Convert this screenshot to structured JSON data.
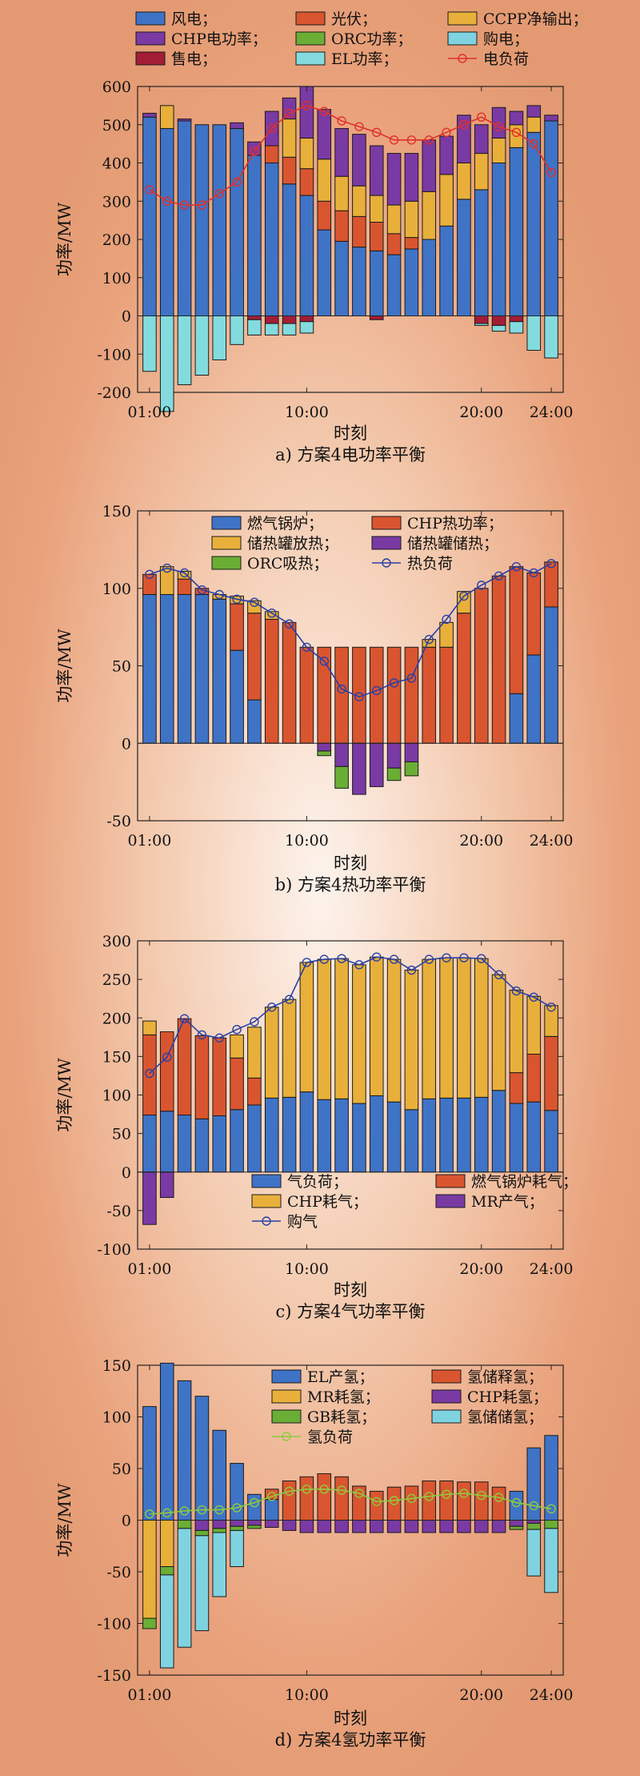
{
  "chart_data": [
    {
      "type": "bar",
      "caption": "a) 方案4电功率平衡",
      "xlabel": "时刻",
      "ylabel": "功率/MW",
      "ylim": [
        -200,
        600
      ],
      "yticks": [
        -200,
        -100,
        0,
        100,
        200,
        300,
        400,
        500,
        600
      ],
      "xticks": [
        "01:00",
        "10:00",
        "20:00",
        "24:00"
      ],
      "xtick_hours": [
        1,
        10,
        20,
        24
      ],
      "hours": [
        1,
        2,
        3,
        4,
        5,
        6,
        7,
        8,
        9,
        10,
        11,
        12,
        13,
        14,
        15,
        16,
        17,
        18,
        19,
        20,
        21,
        22,
        23,
        24
      ],
      "legend": {
        "columns": 3
      },
      "series": [
        {
          "name": "风电；",
          "color": "#3f73c6",
          "values": [
            520,
            490,
            510,
            500,
            500,
            490,
            420,
            400,
            345,
            315,
            225,
            195,
            180,
            170,
            160,
            175,
            200,
            235,
            305,
            330,
            400,
            440,
            480,
            510
          ]
        },
        {
          "name": "光伏；",
          "color": "#d9552f",
          "values": [
            0,
            0,
            0,
            0,
            0,
            0,
            0,
            45,
            70,
            70,
            75,
            80,
            80,
            75,
            55,
            30,
            0,
            0,
            0,
            0,
            0,
            0,
            0,
            0
          ]
        },
        {
          "name": "CCPP净输出；",
          "color": "#e8b03a",
          "values": [
            0,
            60,
            0,
            0,
            0,
            0,
            0,
            0,
            100,
            80,
            110,
            90,
            80,
            70,
            75,
            95,
            125,
            135,
            95,
            95,
            65,
            60,
            40,
            0
          ]
        },
        {
          "name": "CHP电功率；",
          "color": "#7a3aa3",
          "values": [
            10,
            0,
            5,
            0,
            0,
            15,
            35,
            90,
            55,
            135,
            130,
            125,
            135,
            130,
            135,
            125,
            135,
            100,
            125,
            75,
            80,
            35,
            30,
            15
          ]
        },
        {
          "name": "ORC功率；",
          "color": "#6aae35",
          "values": [
            0,
            0,
            0,
            0,
            0,
            0,
            0,
            0,
            0,
            0,
            0,
            0,
            0,
            0,
            0,
            0,
            0,
            0,
            0,
            0,
            0,
            0,
            0,
            0
          ]
        },
        {
          "name": "购电；",
          "color": "#7fd3e0",
          "values": [
            0,
            0,
            0,
            0,
            0,
            0,
            0,
            0,
            0,
            0,
            0,
            0,
            0,
            0,
            0,
            0,
            0,
            0,
            0,
            0,
            0,
            0,
            0,
            0
          ]
        },
        {
          "name": "售电；",
          "color": "#a31d36",
          "values": [
            0,
            0,
            0,
            0,
            0,
            0,
            -10,
            -20,
            -20,
            -15,
            0,
            0,
            0,
            -10,
            0,
            0,
            0,
            0,
            0,
            -20,
            -25,
            -15,
            0,
            0
          ]
        },
        {
          "name": "EL功率；",
          "color": "#84dbde",
          "values": [
            -145,
            -250,
            -180,
            -155,
            -115,
            -75,
            -40,
            -30,
            -30,
            -30,
            0,
            0,
            0,
            0,
            0,
            0,
            0,
            0,
            0,
            -5,
            -15,
            -30,
            -90,
            -110
          ]
        }
      ],
      "lines": [
        {
          "name": "电负荷",
          "color": "#e0302a",
          "marker": "circle",
          "values": [
            330,
            300,
            290,
            290,
            320,
            350,
            430,
            490,
            530,
            550,
            535,
            510,
            495,
            480,
            460,
            460,
            460,
            480,
            500,
            520,
            495,
            480,
            450,
            375
          ]
        }
      ]
    },
    {
      "type": "bar",
      "caption": "b) 方案4热功率平衡",
      "xlabel": "时刻",
      "ylabel": "功率/MW",
      "ylim": [
        -50,
        150
      ],
      "yticks": [
        -50,
        0,
        50,
        100,
        150
      ],
      "xticks": [
        "01:00",
        "10:00",
        "20:00",
        "24:00"
      ],
      "xtick_hours": [
        1,
        10,
        20,
        24
      ],
      "hours": [
        1,
        2,
        3,
        4,
        5,
        6,
        7,
        8,
        9,
        10,
        11,
        12,
        13,
        14,
        15,
        16,
        17,
        18,
        19,
        20,
        21,
        22,
        23,
        24
      ],
      "legend": {
        "columns": 2
      },
      "series": [
        {
          "name": "燃气锅炉；",
          "color": "#3f73c6",
          "values": [
            96,
            96,
            96,
            96,
            93,
            60,
            28,
            0,
            0,
            0,
            0,
            0,
            0,
            0,
            0,
            0,
            0,
            0,
            0,
            0,
            0,
            32,
            57,
            88
          ]
        },
        {
          "name": "CHP热功率；",
          "color": "#d9552f",
          "values": [
            13,
            0,
            10,
            4,
            0,
            30,
            56,
            80,
            78,
            62,
            62,
            62,
            62,
            62,
            62,
            62,
            62,
            62,
            84,
            100,
            108,
            82,
            53,
            29
          ]
        },
        {
          "name": "储热罐放热；",
          "color": "#e8b03a",
          "values": [
            0,
            18,
            5,
            0,
            3,
            5,
            8,
            5,
            0,
            0,
            0,
            0,
            0,
            0,
            0,
            0,
            5,
            16,
            14,
            0,
            0,
            0,
            0,
            0
          ]
        },
        {
          "name": "储热罐储热；",
          "color": "#7a3aa3",
          "values": [
            0,
            0,
            0,
            0,
            0,
            0,
            0,
            0,
            0,
            0,
            -5,
            -15,
            -33,
            -28,
            -16,
            -12,
            0,
            0,
            0,
            0,
            0,
            0,
            0,
            0
          ]
        },
        {
          "name": "ORC吸热；",
          "color": "#6aae35",
          "values": [
            0,
            0,
            0,
            0,
            0,
            0,
            0,
            0,
            0,
            0,
            -3,
            -14,
            0,
            0,
            -8,
            -9,
            0,
            0,
            0,
            0,
            0,
            0,
            0,
            0
          ]
        }
      ],
      "lines": [
        {
          "name": "热负荷",
          "color": "#2a3fa6",
          "marker": "circle",
          "values": [
            109,
            113,
            110,
            99,
            96,
            93,
            91,
            84,
            77,
            62,
            53,
            35,
            30,
            34,
            39,
            42,
            67,
            80,
            95,
            102,
            108,
            114,
            110,
            116
          ]
        }
      ]
    },
    {
      "type": "bar",
      "caption": "c) 方案4气功率平衡",
      "xlabel": "时刻",
      "ylabel": "功率/MW",
      "ylim": [
        -100,
        300
      ],
      "yticks": [
        -100,
        -50,
        0,
        50,
        100,
        150,
        200,
        250,
        300
      ],
      "xticks": [
        "01:00",
        "10:00",
        "20:00",
        "24:00"
      ],
      "xtick_hours": [
        1,
        10,
        20,
        24
      ],
      "hours": [
        1,
        2,
        3,
        4,
        5,
        6,
        7,
        8,
        9,
        10,
        11,
        12,
        13,
        14,
        15,
        16,
        17,
        18,
        19,
        20,
        21,
        22,
        23,
        24
      ],
      "legend": {
        "columns": 2
      },
      "series": [
        {
          "name": "气负荷；",
          "color": "#3f73c6",
          "values": [
            74,
            79,
            74,
            69,
            73,
            81,
            87,
            96,
            97,
            104,
            94,
            95,
            89,
            99,
            91,
            81,
            95,
            96,
            96,
            97,
            106,
            89,
            91,
            80
          ]
        },
        {
          "name": "燃气锅炉耗气；",
          "color": "#d9552f",
          "values": [
            104,
            103,
            125,
            108,
            101,
            67,
            35,
            0,
            0,
            0,
            0,
            0,
            0,
            0,
            0,
            0,
            0,
            0,
            0,
            0,
            0,
            40,
            62,
            96
          ]
        },
        {
          "name": "CHP耗气；",
          "color": "#e8b03a",
          "values": [
            18,
            0,
            0,
            0,
            0,
            30,
            66,
            118,
            127,
            168,
            182,
            182,
            180,
            180,
            185,
            181,
            181,
            182,
            182,
            180,
            150,
            107,
            75,
            40
          ]
        },
        {
          "name": "MR产气；",
          "color": "#7a3aa3",
          "values": [
            -68,
            -33,
            0,
            0,
            0,
            0,
            0,
            0,
            0,
            0,
            0,
            0,
            0,
            0,
            0,
            0,
            0,
            0,
            0,
            0,
            0,
            0,
            0,
            0
          ]
        }
      ],
      "lines": [
        {
          "name": "购气",
          "color": "#2a3fa6",
          "marker": "circle",
          "values": [
            128,
            149,
            199,
            178,
            174,
            185,
            195,
            214,
            224,
            272,
            276,
            277,
            269,
            279,
            276,
            262,
            276,
            278,
            278,
            277,
            256,
            235,
            227,
            214
          ]
        }
      ]
    },
    {
      "type": "bar",
      "caption": "d) 方案4氢功率平衡",
      "xlabel": "时刻",
      "ylabel": "功率/MW",
      "ylim": [
        -150,
        150
      ],
      "yticks": [
        -150,
        -100,
        -50,
        0,
        50,
        100,
        150
      ],
      "xticks": [
        "01:00",
        "10:00",
        "20:00",
        "24:00"
      ],
      "xtick_hours": [
        1,
        10,
        20,
        24
      ],
      "hours": [
        1,
        2,
        3,
        4,
        5,
        6,
        7,
        8,
        9,
        10,
        11,
        12,
        13,
        14,
        15,
        16,
        17,
        18,
        19,
        20,
        21,
        22,
        23,
        24
      ],
      "legend": {
        "columns": 2
      },
      "series": [
        {
          "name": "EL产氢；",
          "color": "#3f73c6",
          "values": [
            110,
            152,
            135,
            120,
            87,
            55,
            25,
            20,
            0,
            0,
            0,
            0,
            0,
            0,
            0,
            0,
            0,
            0,
            0,
            0,
            0,
            28,
            70,
            82
          ]
        },
        {
          "name": "氢储释氢；",
          "color": "#d9552f",
          "values": [
            0,
            0,
            0,
            0,
            0,
            0,
            0,
            10,
            38,
            42,
            45,
            42,
            33,
            28,
            32,
            33,
            38,
            38,
            37,
            37,
            32,
            0,
            0,
            0
          ]
        },
        {
          "name": "MR耗氢；",
          "color": "#e8b03a",
          "values": [
            -95,
            -45,
            0,
            0,
            0,
            0,
            0,
            0,
            0,
            0,
            0,
            0,
            0,
            0,
            0,
            0,
            0,
            0,
            0,
            0,
            0,
            0,
            0,
            0
          ]
        },
        {
          "name": "CHP耗氢；",
          "color": "#7a3aa3",
          "values": [
            0,
            0,
            0,
            -10,
            -8,
            -6,
            -5,
            -7,
            -10,
            -12,
            -12,
            -12,
            -12,
            -12,
            -12,
            -12,
            -12,
            -12,
            -12,
            -12,
            -12,
            -6,
            -3,
            0
          ]
        },
        {
          "name": "GB耗氢；",
          "color": "#6aae35",
          "values": [
            -10,
            -8,
            -8,
            -5,
            -4,
            -4,
            -3,
            0,
            0,
            0,
            0,
            0,
            0,
            0,
            0,
            0,
            0,
            0,
            0,
            0,
            0,
            -3,
            -6,
            -8
          ]
        },
        {
          "name": "氢储储氢；",
          "color": "#7fd3e0",
          "values": [
            0,
            -90,
            -115,
            -92,
            -62,
            -35,
            0,
            0,
            0,
            0,
            0,
            0,
            0,
            0,
            0,
            0,
            0,
            0,
            0,
            0,
            0,
            0,
            -45,
            -62
          ]
        }
      ],
      "lines": [
        {
          "name": "氢负荷",
          "color": "#8fcb3e",
          "marker": "circle",
          "values": [
            6,
            7,
            9,
            10,
            10,
            12,
            17,
            23,
            28,
            30,
            30,
            29,
            26,
            18,
            19,
            21,
            23,
            25,
            26,
            24,
            22,
            17,
            14,
            11
          ]
        }
      ]
    }
  ]
}
